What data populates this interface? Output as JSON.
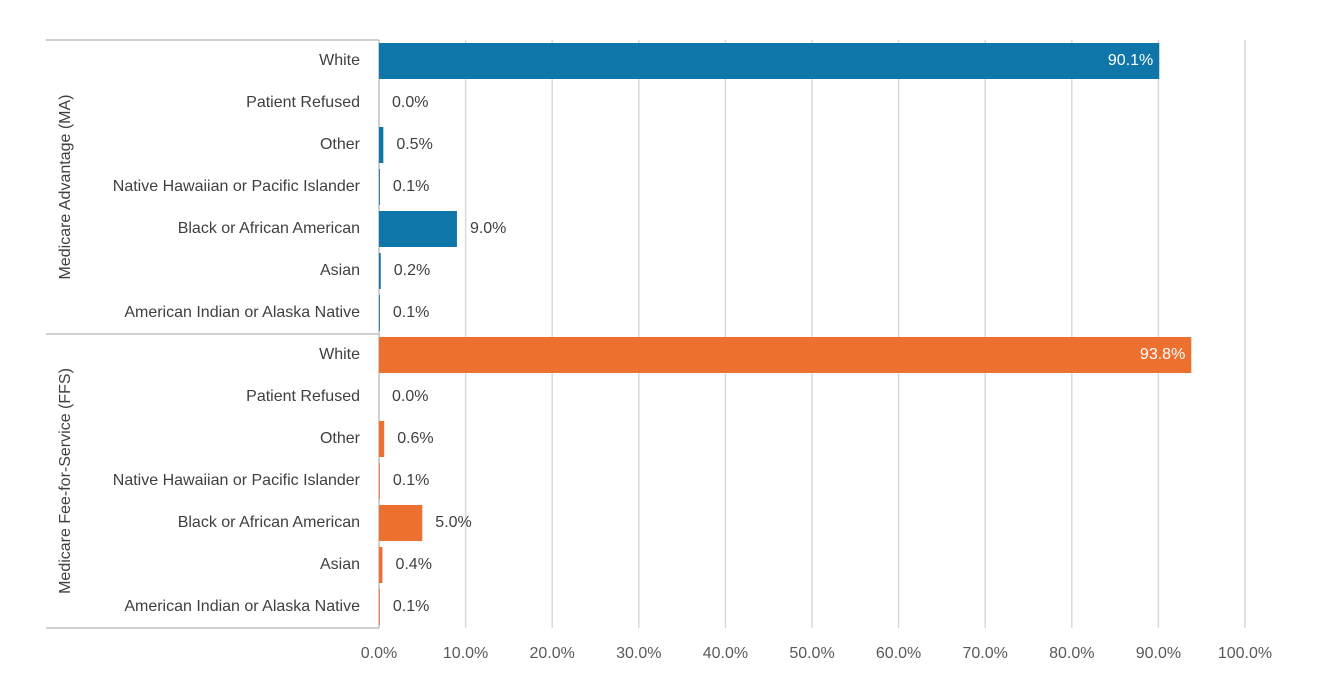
{
  "chart_data": {
    "type": "bar",
    "orientation": "horizontal",
    "title": "",
    "xlabel": "",
    "ylabel": "",
    "xlim": [
      0,
      100
    ],
    "x_ticks": [
      "0.0%",
      "10.0%",
      "20.0%",
      "30.0%",
      "40.0%",
      "50.0%",
      "60.0%",
      "70.0%",
      "80.0%",
      "90.0%",
      "100.0%"
    ],
    "grid": true,
    "legend": "none",
    "groups": [
      {
        "name": "Medicare Advantage (MA)",
        "color": "#0e76a8",
        "categories": [
          "White",
          "Patient Refused",
          "Other",
          "Native Hawaiian or Pacific Islander",
          "Black or African American",
          "Asian",
          "American Indian or Alaska Native"
        ],
        "values": [
          90.1,
          0.0,
          0.5,
          0.1,
          9.0,
          0.2,
          0.1
        ],
        "labels": [
          "90.1%",
          "0.0%",
          "0.5%",
          "0.1%",
          "9.0%",
          "0.2%",
          "0.1%"
        ]
      },
      {
        "name": "Medicare Fee-for-Service (FFS)",
        "color": "#ec7131",
        "categories": [
          "White",
          "Patient Refused",
          "Other",
          "Native Hawaiian or Pacific Islander",
          "Black or African American",
          "Asian",
          "American Indian or Alaska Native"
        ],
        "values": [
          93.8,
          0.0,
          0.6,
          0.1,
          5.0,
          0.4,
          0.1
        ],
        "labels": [
          "93.8%",
          "0.0%",
          "0.6%",
          "0.1%",
          "5.0%",
          "0.4%",
          "0.1%"
        ]
      }
    ]
  }
}
